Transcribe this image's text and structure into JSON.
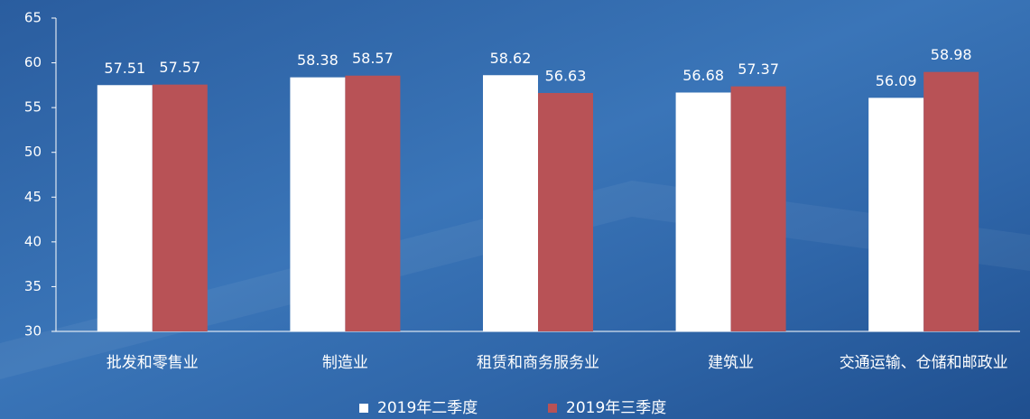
{
  "chart_data": {
    "type": "bar",
    "categories": [
      "批发和零售业",
      "制造业",
      "租赁和商务服务业",
      "建筑业",
      "交通运输、仓储和邮政业"
    ],
    "series": [
      {
        "name": "2019年二季度",
        "color": "#ffffff",
        "values": [
          57.51,
          58.38,
          58.62,
          56.68,
          56.09
        ]
      },
      {
        "name": "2019年三季度",
        "color": "#b85256",
        "values": [
          57.57,
          58.57,
          56.63,
          57.37,
          58.98
        ]
      }
    ],
    "ylim": [
      30,
      65
    ],
    "yticks": [
      30,
      35,
      40,
      45,
      50,
      55,
      60,
      65
    ],
    "legend": "bottom"
  }
}
